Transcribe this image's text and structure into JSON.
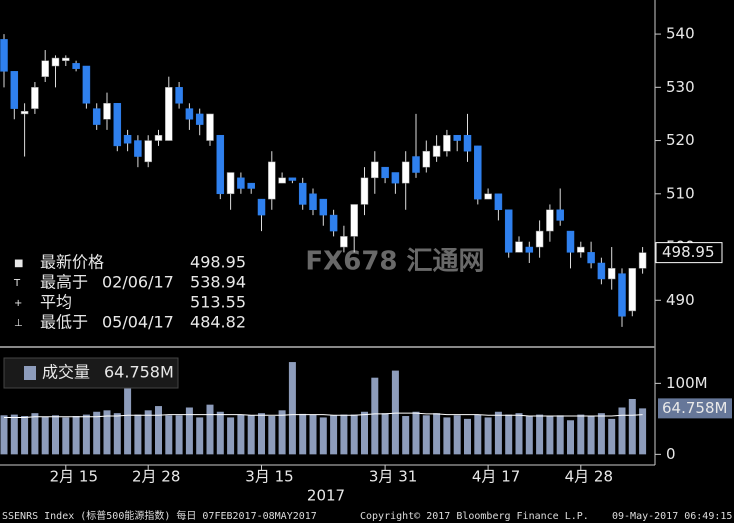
{
  "chart_data": {
    "type": "candlestick",
    "categories": [
      null,
      null,
      null,
      null,
      null,
      null,
      "2月 15",
      null,
      null,
      null,
      null,
      null,
      null,
      null,
      "2月 28",
      null,
      null,
      null,
      null,
      null,
      null,
      null,
      null,
      null,
      null,
      "3月 15",
      null,
      null,
      null,
      null,
      null,
      null,
      null,
      null,
      null,
      null,
      null,
      "3月 31",
      null,
      null,
      null,
      null,
      null,
      null,
      null,
      null,
      null,
      "4月 17",
      null,
      null,
      null,
      null,
      null,
      null,
      null,
      null,
      "4月 28",
      null,
      null,
      null,
      null,
      null,
      null
    ],
    "x_year": "2017",
    "open": [
      539,
      533,
      525,
      526,
      532,
      534,
      535,
      534.5,
      534,
      526,
      524,
      527,
      521,
      520,
      516,
      520,
      520,
      530,
      526,
      525,
      520,
      521,
      510,
      513,
      512,
      509,
      509,
      512,
      513,
      512,
      510,
      509,
      506,
      500,
      502,
      508,
      513,
      515,
      514,
      512,
      517,
      515,
      517,
      518,
      521,
      521,
      519,
      509,
      510,
      507,
      499,
      500,
      500,
      503,
      507,
      503,
      499,
      499,
      497,
      494,
      495,
      488,
      496
    ],
    "high": [
      540,
      533,
      527,
      531,
      537,
      536,
      536,
      535,
      534,
      527,
      529,
      527,
      522,
      521,
      521,
      522,
      532,
      531,
      527,
      526,
      525,
      521,
      514,
      514,
      512,
      509,
      518,
      514,
      513,
      513,
      511,
      509,
      507,
      504,
      508,
      515,
      518,
      515,
      514,
      518,
      525,
      520,
      521,
      522,
      521,
      525,
      519,
      511,
      510,
      507,
      502,
      501,
      505,
      508,
      511,
      503,
      501,
      501,
      498,
      500,
      496,
      496,
      500
    ],
    "low": [
      530,
      524,
      517,
      525,
      531,
      530,
      534,
      533,
      526,
      522,
      522,
      518,
      518,
      515,
      515,
      519,
      520,
      526,
      522,
      521,
      519,
      509,
      507,
      510,
      510,
      503,
      507,
      512,
      512,
      507,
      506,
      504,
      502,
      499,
      499,
      506,
      510,
      512,
      510,
      507,
      513,
      514,
      516,
      517,
      518,
      516,
      508,
      509,
      505,
      498,
      499,
      497,
      498,
      501,
      504,
      496,
      498,
      496,
      493,
      492,
      485,
      487,
      495
    ],
    "close": [
      533,
      526,
      525.5,
      530,
      535,
      535.5,
      535.5,
      533.5,
      527,
      523,
      527,
      519,
      519.5,
      517,
      520,
      521,
      530,
      527,
      524,
      523,
      525,
      510,
      514,
      511,
      511,
      506,
      516,
      513,
      512.5,
      508,
      507,
      506,
      503,
      502,
      508,
      513,
      516,
      513,
      512,
      516,
      514,
      518,
      519,
      521,
      520,
      518,
      509,
      510,
      507,
      499,
      501,
      499,
      503,
      507,
      505,
      499,
      500,
      497,
      494,
      496,
      487,
      496,
      498.95
    ],
    "up_color": "#ffffff",
    "down_color": "#2f80ee",
    "ylim": [
      481.6,
      546.4
    ],
    "yticks": [
      490,
      500,
      510,
      520,
      530,
      540
    ],
    "stats": [
      {
        "label": "最新价格",
        "value": 498.95
      },
      {
        "label": "最高于",
        "date": "02/06/17",
        "value": 538.94
      },
      {
        "label": "平均",
        "value": 513.55
      },
      {
        "label": "最低于",
        "date": "05/04/17",
        "value": 484.82
      }
    ],
    "volume": {
      "name": "成交量",
      "color": "#8d9cbb",
      "values": [
        55,
        56,
        54,
        58,
        53,
        55,
        52,
        54,
        56,
        60,
        62,
        58,
        100,
        56,
        62,
        68,
        55,
        55,
        66,
        52,
        70,
        60,
        52,
        56,
        55,
        58,
        54,
        62,
        130,
        57,
        56,
        52,
        55,
        56,
        56,
        60,
        108,
        58,
        118,
        54,
        60,
        55,
        58,
        52,
        55,
        50,
        56,
        52,
        60,
        56,
        58,
        54,
        56,
        54,
        55,
        48,
        56,
        54,
        58,
        50,
        66,
        78,
        64.758
      ],
      "average": [
        52,
        52,
        52,
        53,
        53,
        53,
        53,
        53,
        53,
        53,
        54,
        54,
        55,
        55,
        55,
        55,
        56,
        56,
        56,
        56,
        56,
        56,
        56,
        56,
        55,
        55,
        55,
        55,
        56,
        56,
        56,
        56,
        55,
        55,
        55,
        56,
        57,
        57,
        58,
        58,
        58,
        57,
        57,
        56,
        56,
        56,
        56,
        55,
        55,
        55,
        55,
        54,
        54,
        54,
        54,
        54,
        54,
        54,
        54,
        54,
        55,
        55,
        56
      ],
      "ylim": [
        -15,
        147
      ],
      "yticks": [
        0,
        {
          "value": 100,
          "label": "100M"
        }
      ],
      "last": {
        "value": 64.758,
        "label": "64.758M"
      }
    },
    "watermark": "FX678 汇通网",
    "footer": [
      "SSENRS Index (标普500能源指数)  每日 07FEB2017-08MAY2017",
      "Copyright© 2017 Bloomberg Finance L.P.",
      "09-May-2017 06:49:15"
    ]
  }
}
